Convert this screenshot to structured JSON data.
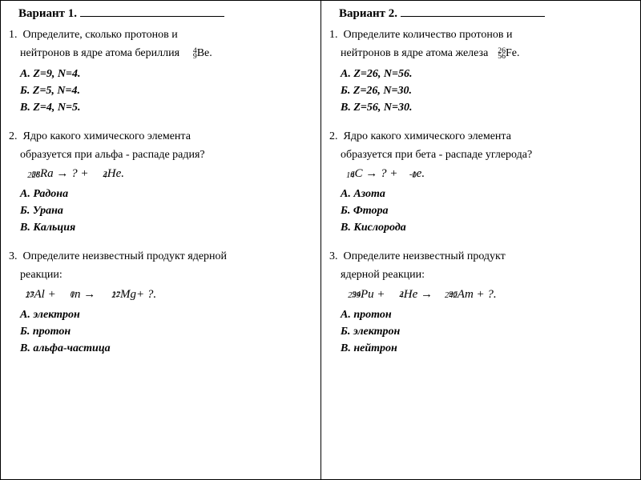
{
  "colors": {
    "text": "#000000",
    "bg": "#ffffff",
    "border": "#000000"
  },
  "typography": {
    "family": "Times New Roman",
    "base_size_pt": 14,
    "title_size_pt": 15,
    "formula_size_pt": 15
  },
  "layout": {
    "columns": 2,
    "col_border": true
  },
  "left": {
    "title": "Вариант 1.",
    "q1": {
      "num": "1.",
      "line1": "Определите, сколько протонов и",
      "line2_a": "нейтронов в ядре атома бериллия ",
      "line2_b": "Be.",
      "nuclide": {
        "A": "9",
        "Z": "4"
      },
      "opts": {
        "A": "А. Z=9, N=4.",
        "B": "Б. Z=5, N=4.",
        "V": "В. Z=4, N=5."
      }
    },
    "q2": {
      "num": "2.",
      "line1": "Ядро какого химического элемента",
      "line2": "образуется при альфа - распаде радия?",
      "formula_parts": {
        "lhs": {
          "A": "226",
          "Z": "88",
          "sym": "Ra"
        },
        "arrow": " → ? + ",
        "rhs": {
          "A": "4",
          "Z": "2",
          "sym": "He"
        },
        "end": "."
      },
      "opts": {
        "A": "А. Радона",
        "B": "Б. Урана",
        "V": "В. Кальция"
      }
    },
    "q3": {
      "num": "3.",
      "line1": "Определите неизвестный продукт ядерной",
      "line2": "реакции:",
      "formula_parts": {
        "p1": {
          "A": "27",
          "Z": "13",
          "sym": "Al"
        },
        "plus1": " + ",
        "p2": {
          "A": "1",
          "Z": "0",
          "sym": "n"
        },
        "arrow": " → ",
        "p3": {
          "A": "27",
          "Z": "12",
          "sym": "Mg"
        },
        "tail": "+ ?.",
        "gap": " "
      },
      "opts": {
        "A": "А.  электрон",
        "B": "Б. протон",
        "V": "В. альфа-частица"
      }
    }
  },
  "right": {
    "title": "Вариант 2.",
    "q1": {
      "num": "1.",
      "line1": "Определите количество протонов и",
      "line2_a": "нейтронов в ядре атома железа ",
      "line2_b": "Fe.",
      "nuclide": {
        "A": "56",
        "Z": "26"
      },
      "opts": {
        "A": "А. Z=26, N=56.",
        "B": "Б. Z=26, N=30.",
        "V": "В. Z=56, N=30."
      }
    },
    "q2": {
      "num": "2.",
      "line1": "Ядро какого химического элемента",
      "line2": "образуется при бета - распаде углерода?",
      "formula_parts": {
        "lhs": {
          "A": "14",
          "Z": "6",
          "sym": "C"
        },
        "arrow": " → ? + ",
        "rhs": {
          "A": "0",
          "Z": "-1",
          "sym": "e"
        },
        "end": "."
      },
      "opts": {
        "A": "А. Азота",
        "B": "Б. Фтора",
        "V": "В. Кислорода"
      }
    },
    "q3": {
      "num": "3.",
      "line1": "Определите неизвестный продукт",
      "line2": "ядерной реакции:",
      "formula_parts": {
        "p1": {
          "A": "239",
          "Z": "94",
          "sym": "Pu"
        },
        "plus1": " + ",
        "p2": {
          "A": "4",
          "Z": "2",
          "sym": "He"
        },
        "arrow": " → ",
        "p3": {
          "A": "242",
          "Z": "96",
          "sym": "Am"
        },
        "tail": " + ?.",
        "gap": ""
      },
      "opts": {
        "A": "А.  протон",
        "B": "Б. электрон",
        "V": "В. нейтрон"
      }
    }
  }
}
